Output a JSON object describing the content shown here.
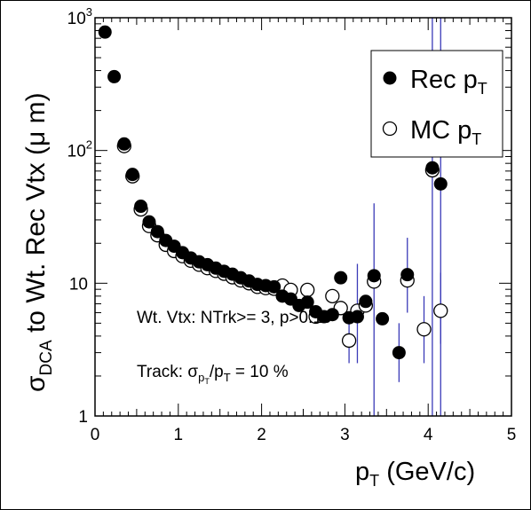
{
  "chart_data": {
    "type": "scatter",
    "xlim": [
      0,
      5
    ],
    "ylim": [
      1,
      1000
    ],
    "ylog": true,
    "grid": false,
    "legend_position": "top-right",
    "xlabel": {
      "main": "p",
      "sub": "T",
      "rest": " (GeV/c)"
    },
    "ylabel": {
      "sigma": "σ",
      "sub": "DCA",
      "rest": " to Wt. Rec Vtx (μ m)"
    },
    "x_ticks": [
      "0",
      "1",
      "2",
      "3",
      "4",
      "5"
    ],
    "x_tick_values": [
      0,
      1,
      2,
      3,
      4,
      5
    ],
    "y_ticks": [
      {
        "value": 1,
        "base": "1",
        "exp": ""
      },
      {
        "value": 10,
        "base": "10",
        "exp": ""
      },
      {
        "value": 100,
        "base": "10",
        "exp": "2"
      },
      {
        "value": 1000,
        "base": "10",
        "exp": "3"
      }
    ],
    "annotations": {
      "vtx": "Wt. Vtx: NTrk>= 3, p>0.10",
      "track_prefix": "Track: ",
      "track_sigma": "σ",
      "track_sub1": "p",
      "track_sub2": "T",
      "track_mid": "/p",
      "track_sub3": "T",
      "track_suffix": " = 10 %"
    },
    "series": [
      {
        "name": "Rec p",
        "name_sub": "T",
        "marker": "filled-circle",
        "color": "#000000",
        "points": [
          [
            0.12,
            780
          ],
          [
            0.23,
            360
          ],
          [
            0.35,
            112
          ],
          [
            0.45,
            66
          ],
          [
            0.55,
            38
          ],
          [
            0.65,
            29
          ],
          [
            0.75,
            24.5
          ],
          [
            0.85,
            21
          ],
          [
            0.95,
            19
          ],
          [
            1.05,
            17
          ],
          [
            1.15,
            15.5
          ],
          [
            1.25,
            14.5
          ],
          [
            1.35,
            13.8
          ],
          [
            1.45,
            13
          ],
          [
            1.55,
            12.3
          ],
          [
            1.65,
            11.7
          ],
          [
            1.75,
            11
          ],
          [
            1.85,
            10.4
          ],
          [
            1.95,
            9.8
          ],
          [
            2.05,
            9.6
          ],
          [
            2.15,
            9.4
          ],
          [
            2.25,
            8
          ],
          [
            2.35,
            7.6
          ],
          [
            2.45,
            6.8
          ],
          [
            2.55,
            7.2
          ],
          [
            2.65,
            6.1
          ],
          [
            2.75,
            5.6
          ],
          [
            2.85,
            5.8
          ],
          [
            2.95,
            11
          ],
          [
            3.05,
            5.5
          ],
          [
            3.15,
            5.6
          ],
          [
            3.25,
            7.3
          ],
          [
            3.35,
            11.4
          ],
          [
            3.45,
            5.4
          ],
          [
            3.65,
            3
          ],
          [
            3.75,
            11.6
          ],
          [
            4.05,
            74
          ],
          [
            4.15,
            56
          ]
        ],
        "errors": [
          [
            3.15,
            2.5,
            14
          ],
          [
            3.35,
            1,
            40
          ],
          [
            3.65,
            1.8,
            5
          ],
          [
            3.75,
            6,
            22
          ],
          [
            4.05,
            1,
            1000
          ],
          [
            4.15,
            1,
            1000
          ]
        ]
      },
      {
        "name": "MC p",
        "name_sub": "T",
        "marker": "open-circle",
        "color": "#000000",
        "points": [
          [
            0.35,
            108
          ],
          [
            0.45,
            64
          ],
          [
            0.55,
            36
          ],
          [
            0.65,
            27
          ],
          [
            0.75,
            23
          ],
          [
            0.85,
            19.5
          ],
          [
            0.95,
            17.5
          ],
          [
            1.05,
            16
          ],
          [
            1.15,
            14.8
          ],
          [
            1.25,
            13.8
          ],
          [
            1.35,
            13
          ],
          [
            1.45,
            12.4
          ],
          [
            1.55,
            11.8
          ],
          [
            1.65,
            11.1
          ],
          [
            1.75,
            10.5
          ],
          [
            1.85,
            10
          ],
          [
            1.95,
            9.4
          ],
          [
            2.05,
            9.2
          ],
          [
            2.15,
            9.1
          ],
          [
            2.25,
            9.6
          ],
          [
            2.35,
            8.9
          ],
          [
            2.55,
            8.9
          ],
          [
            2.65,
            5.6
          ],
          [
            2.85,
            8
          ],
          [
            2.95,
            6.5
          ],
          [
            3.05,
            3.7
          ],
          [
            3.15,
            6.2
          ],
          [
            3.25,
            6.8
          ],
          [
            3.35,
            10.3
          ],
          [
            3.75,
            10.5
          ],
          [
            3.95,
            4.5
          ],
          [
            4.05,
            71
          ],
          [
            4.15,
            6.2
          ]
        ],
        "errors": [
          [
            3.05,
            2.5,
            6
          ],
          [
            3.95,
            2.5,
            8
          ],
          [
            4.15,
            3.5,
            12
          ]
        ]
      }
    ]
  }
}
